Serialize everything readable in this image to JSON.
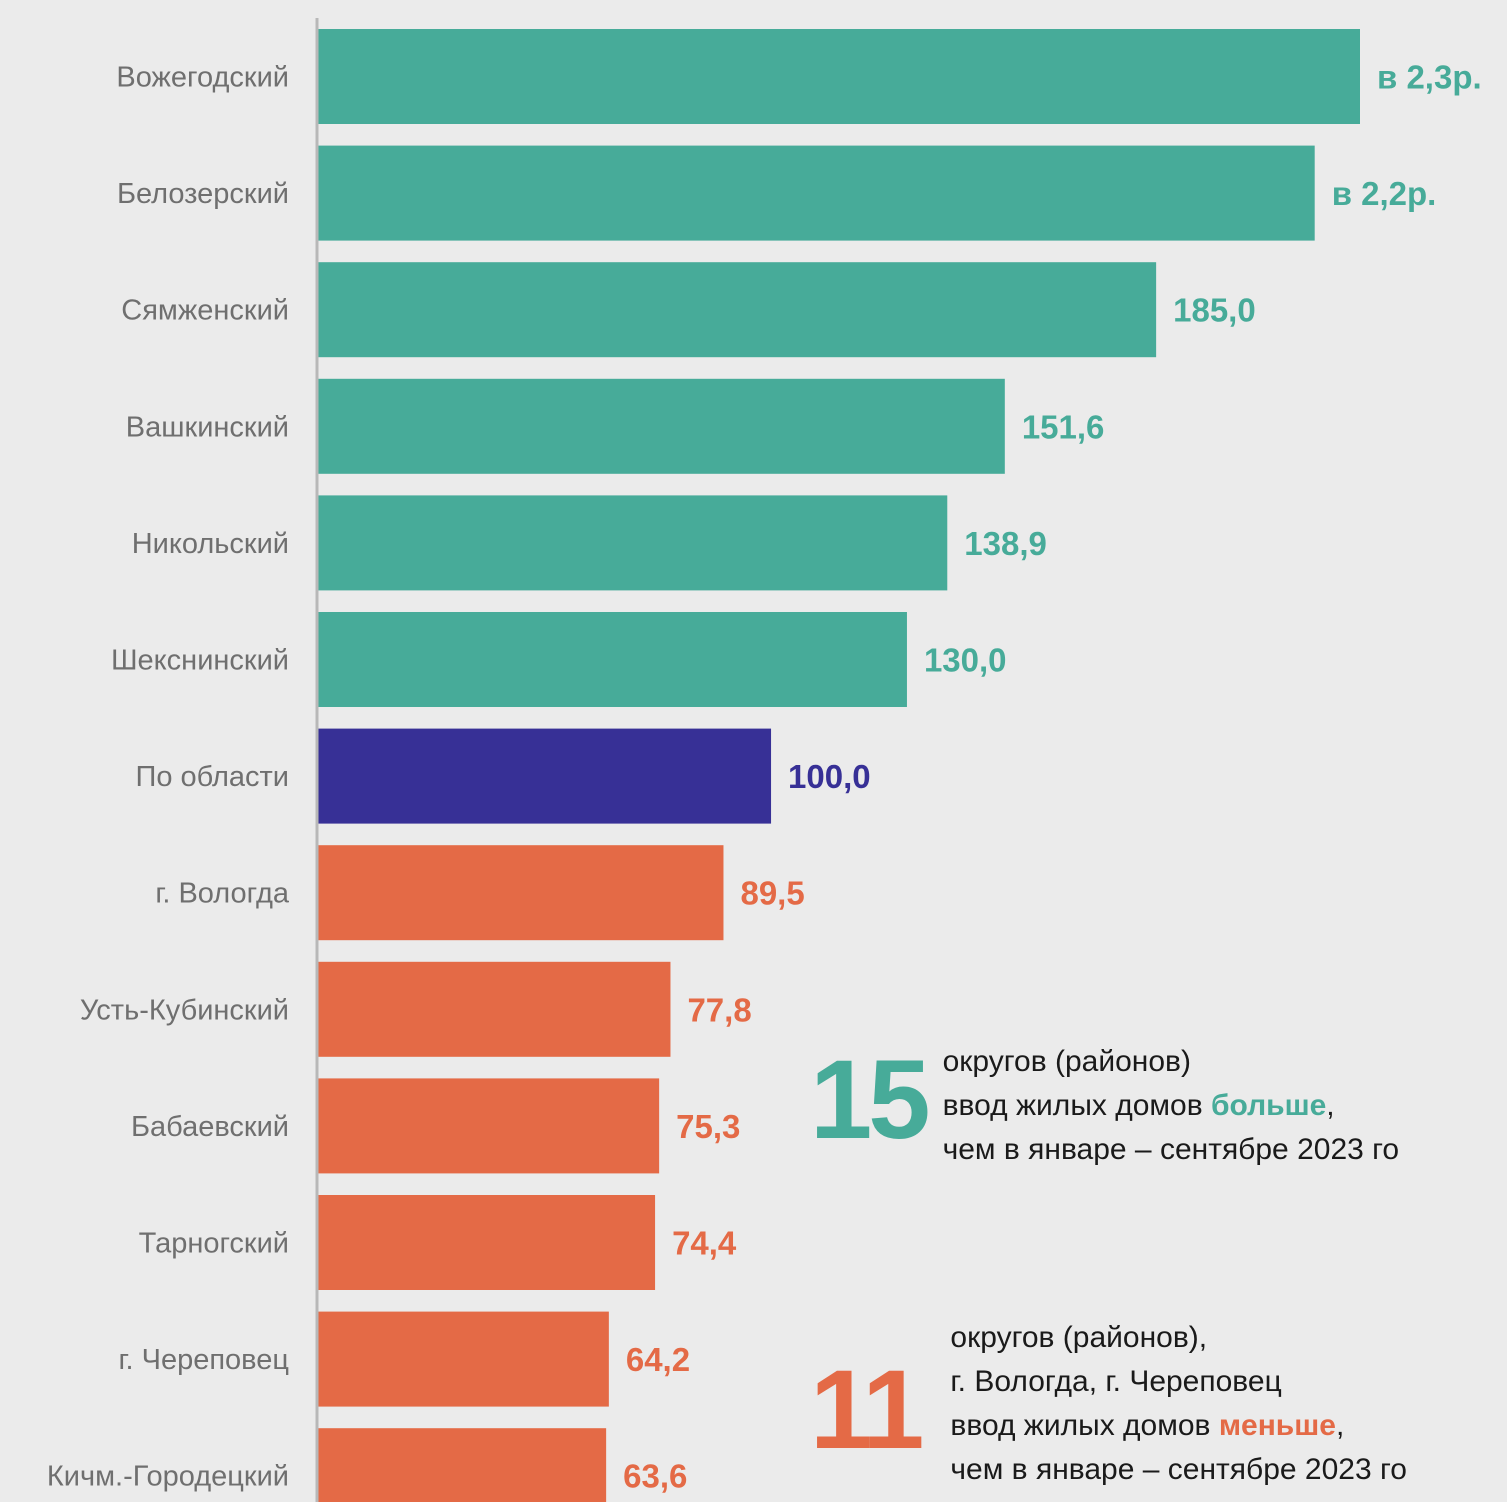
{
  "colors": {
    "above": "#47ab99",
    "region": "#373096",
    "below": "#e46a46",
    "axis": "#b8b8b8",
    "category_text": "#6f6f6f"
  },
  "chart_data": {
    "type": "bar",
    "orientation": "horizontal",
    "categories": [
      "Вожегодский",
      "Белозерский",
      "Сямженский",
      "Вашкинский",
      "Никольский",
      "Шекснинский",
      "По области",
      "г. Вологда",
      "Усть-Кубинский",
      "Бабаевский",
      "Тарногский",
      "г. Череповец",
      "Кичм.-Городецкий"
    ],
    "values": [
      230,
      220,
      185.0,
      151.6,
      138.9,
      130.0,
      100.0,
      89.5,
      77.8,
      75.3,
      74.4,
      64.2,
      63.6
    ],
    "data_labels": [
      "в 2,3р.",
      "в 2,2р.",
      "185,0",
      "151,6",
      "138,9",
      "130,0",
      "100,0",
      "89,5",
      "77,8",
      "75,3",
      "74,4",
      "64,2",
      "63,6"
    ],
    "groups": [
      "above",
      "above",
      "above",
      "above",
      "above",
      "above",
      "region",
      "below",
      "below",
      "below",
      "below",
      "below",
      "below"
    ],
    "xlim": [
      0,
      230
    ],
    "grid": false
  },
  "notes": {
    "above": {
      "number": "15",
      "line1": "округов (районов)",
      "line2_pre": "ввод жилых домов ",
      "line2_hl": "больше",
      "line2_post": ",",
      "line3": "чем в январе – сентябре 2023 го"
    },
    "below": {
      "number": "11",
      "line1": "округов (районов),",
      "line2": "г. Вологда, г. Череповец",
      "line3_pre": "ввод жилых домов ",
      "line3_hl": "меньше",
      "line3_post": ",",
      "line4": "чем в январе – сентябре 2023 го"
    }
  }
}
